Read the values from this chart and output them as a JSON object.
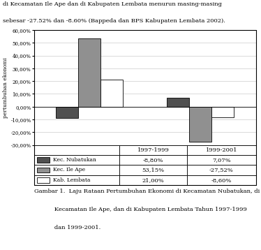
{
  "categories": [
    "1997-1999",
    "1999-2001"
  ],
  "series": [
    {
      "label": "Kec. Nubatukan",
      "values": [
        -8.8,
        7.07
      ],
      "color": "#505050"
    },
    {
      "label": "Kec. Ile Ape",
      "values": [
        53.15,
        -27.52
      ],
      "color": "#909090"
    },
    {
      "label": "Kab. Lembata",
      "values": [
        21.0,
        -8.6
      ],
      "color": "#ffffff"
    }
  ],
  "ylabel": "pertumbuhan ekonomi",
  "ylim": [
    -30,
    60
  ],
  "yticks": [
    -30,
    -20,
    -10,
    0,
    10,
    20,
    30,
    40,
    50,
    60
  ],
  "ytick_labels": [
    "-30,00%",
    "-20,00%",
    "-10,00%",
    "0,00%",
    "10,00%",
    "20,00%",
    "30,00%",
    "40,00%",
    "50,00%",
    "60,00%"
  ],
  "table_values": [
    [
      "-8,80%",
      "7,07%"
    ],
    [
      "53,15%",
      "-27,52%"
    ],
    [
      "21,00%",
      "-8,60%"
    ]
  ],
  "background_color": "#ffffff",
  "bar_edge_color": "#000000",
  "grid_color": "#cccccc",
  "top_line1": "di Kecamatan Ile Ape dan di Kabupaten Lembata menurun masing-masing",
  "top_line2": "sebesar -27.52% dan -8.60% (Bappeda dan BPS Kabupaten Lembata 2002).",
  "caption_line1": "Gambar 1.  Laju Rataan Pertumbuhan Ekonomi di Kecamatan Nubatukan, di",
  "caption_line2": "           Kecamatan Ile Ape, dan di Kabupaten Lembata Tahun 1997-1999",
  "caption_line3": "           dan 1999-2001."
}
